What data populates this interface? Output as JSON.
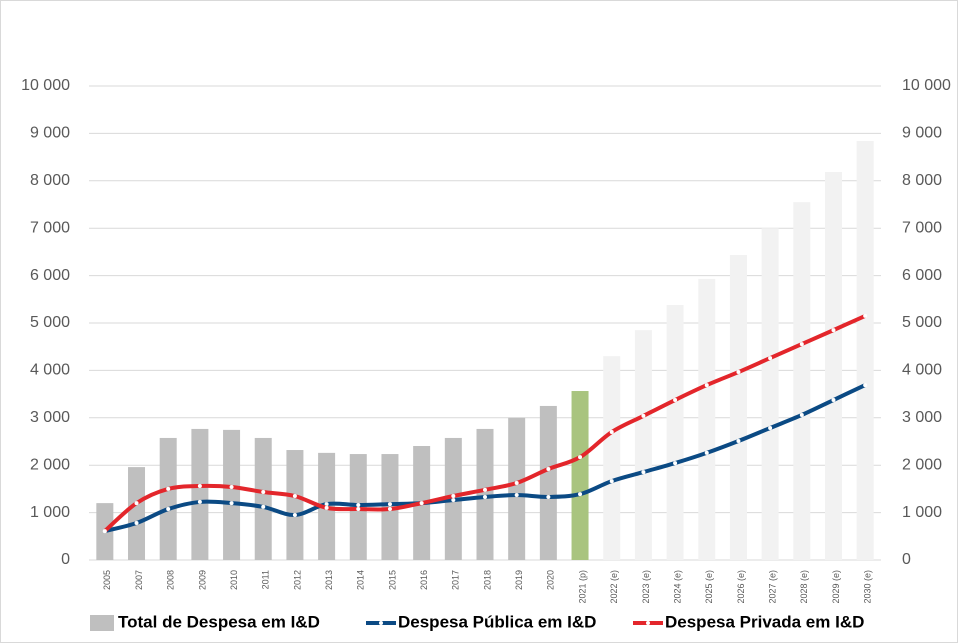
{
  "chart_data": {
    "type": "bar-line",
    "categories": [
      "2005",
      "2007",
      "2008",
      "2009",
      "2010",
      "2011",
      "2012",
      "2013",
      "2014",
      "2015",
      "2016",
      "2017",
      "2018",
      "2019",
      "2020",
      "2021 (p)",
      "2022 (e)",
      "2023 (e)",
      "2024 (e)",
      "2025 (e)",
      "2026 (e)",
      "2027 (e)",
      "2028 (e)",
      "2029 (e)",
      "2030 (e)"
    ],
    "series": [
      {
        "name": "Total de Despesa em I&D",
        "type": "bar",
        "colors": [
          "#bfbfbf",
          "#bfbfbf",
          "#bfbfbf",
          "#bfbfbf",
          "#bfbfbf",
          "#bfbfbf",
          "#bfbfbf",
          "#bfbfbf",
          "#bfbfbf",
          "#bfbfbf",
          "#bfbfbf",
          "#bfbfbf",
          "#bfbfbf",
          "#bfbfbf",
          "#bfbfbf",
          "#a9c47f",
          "#f2f2f2",
          "#f2f2f2",
          "#f2f2f2",
          "#f2f2f2",
          "#f2f2f2",
          "#f2f2f2",
          "#f2f2f2",
          "#f2f2f2",
          "#f2f2f2"
        ],
        "color": "#bfbfbf",
        "values": [
          1200,
          1960,
          2575,
          2765,
          2745,
          2575,
          2320,
          2260,
          2235,
          2235,
          2405,
          2575,
          2765,
          3000,
          3250,
          3565,
          4300,
          4850,
          5380,
          5930,
          6435,
          7000,
          7550,
          8185,
          8840
        ]
      },
      {
        "name": "Despesa Pública em I&D",
        "type": "line",
        "color": "#0b4a84",
        "values": [
          610,
          780,
          1075,
          1225,
          1200,
          1120,
          950,
          1180,
          1160,
          1180,
          1200,
          1265,
          1330,
          1370,
          1330,
          1390,
          1665,
          1855,
          2045,
          2260,
          2510,
          2785,
          3060,
          3375,
          3690
        ]
      },
      {
        "name": "Despesa Privada em I&D",
        "type": "line",
        "color": "#e3262b",
        "values": [
          610,
          1200,
          1500,
          1560,
          1540,
          1435,
          1350,
          1100,
          1075,
          1075,
          1200,
          1350,
          1480,
          1625,
          1920,
          2170,
          2700,
          3040,
          3375,
          3690,
          3965,
          4260,
          4555,
          4850,
          5150
        ]
      }
    ],
    "ylim": [
      0,
      10000
    ],
    "yticks": [
      0,
      {
        "value": 1000,
        "label": "1 000"
      },
      {
        "value": 2000,
        "label": "2 000"
      },
      {
        "value": 3000,
        "label": "3 000"
      },
      {
        "value": 4000,
        "label": "4 000"
      },
      {
        "value": 5000,
        "label": "5 000"
      },
      {
        "value": 6000,
        "label": "6 000"
      },
      {
        "value": 7000,
        "label": "7 000"
      },
      {
        "value": 8000,
        "label": "8 000"
      },
      {
        "value": 9000,
        "label": "9 000"
      },
      {
        "value": 10000,
        "label": "10 000"
      }
    ],
    "y2lim": [
      0,
      10000
    ],
    "y2ticks": [
      0,
      {
        "value": 1000,
        "label": "1 000"
      },
      {
        "value": 2000,
        "label": "2 000"
      },
      {
        "value": 3000,
        "label": "3 000"
      },
      {
        "value": 4000,
        "label": "4 000"
      },
      {
        "value": 5000,
        "label": "5 000"
      },
      {
        "value": 6000,
        "label": "6 000"
      },
      {
        "value": 7000,
        "label": "7 000"
      },
      {
        "value": 8000,
        "label": "8 000"
      },
      {
        "value": 9000,
        "label": "9 000"
      },
      {
        "value": 10000,
        "label": "10 000"
      }
    ],
    "grid": true,
    "legend": "bottom"
  }
}
